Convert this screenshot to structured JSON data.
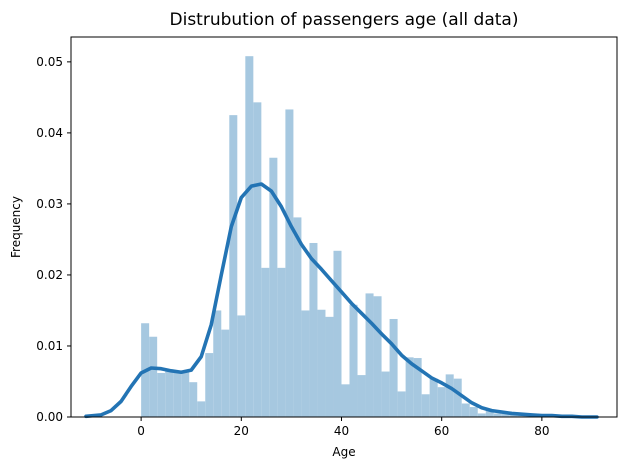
{
  "chart_data": {
    "type": "bar",
    "title": "Distrubution of passengers age (all data)",
    "xlabel": "Age",
    "ylabel": "Frequency",
    "xlim": [
      -14,
      95
    ],
    "ylim": [
      0,
      0.0535
    ],
    "xticks": [
      0,
      20,
      40,
      60,
      80
    ],
    "xtick_labels": [
      "0",
      "20",
      "40",
      "60",
      "80"
    ],
    "yticks": [
      0,
      0.01,
      0.02,
      0.03,
      0.04,
      0.05
    ],
    "ytick_labels": [
      "0.00",
      "0.01",
      "0.02",
      "0.03",
      "0.04",
      "0.05"
    ],
    "grid": false,
    "histogram": {
      "bin_width": 1.6,
      "bin_starts": [
        0,
        1.6,
        3.2,
        4.8,
        6.4,
        8.0,
        9.6,
        11.2,
        12.8,
        14.4,
        16.0,
        17.6,
        19.2,
        20.8,
        22.4,
        24.0,
        25.6,
        27.2,
        28.8,
        30.4,
        32.0,
        33.6,
        35.2,
        36.8,
        38.4,
        40.0,
        41.6,
        43.2,
        44.8,
        46.4,
        48.0,
        49.6,
        51.2,
        52.8,
        54.4,
        56.0,
        57.6,
        59.2,
        60.8,
        62.4,
        64.0,
        65.6,
        67.2,
        68.8,
        70.4,
        72.0,
        73.6,
        75.2,
        76.8,
        78.4
      ],
      "values": [
        0.0132,
        0.0113,
        0.0062,
        0.0066,
        0.0062,
        0.0063,
        0.0049,
        0.0022,
        0.009,
        0.015,
        0.0123,
        0.0425,
        0.0143,
        0.0508,
        0.0443,
        0.021,
        0.0365,
        0.021,
        0.0433,
        0.0281,
        0.015,
        0.0245,
        0.0151,
        0.0141,
        0.0234,
        0.0046,
        0.0158,
        0.0059,
        0.0174,
        0.017,
        0.0064,
        0.0138,
        0.0036,
        0.0084,
        0.0083,
        0.0032,
        0.0054,
        0.0042,
        0.006,
        0.0054,
        0.0019,
        0.0014,
        0.0005,
        0.001,
        0.0005,
        0.0006,
        0.0003,
        0.0003,
        0.0003,
        0.0004
      ],
      "color": "#a6c8e0"
    },
    "series": [
      {
        "type": "kde",
        "x": [
          -11,
          -8,
          -6,
          -4,
          -2,
          0,
          2,
          4,
          6,
          8,
          10,
          12,
          14,
          16,
          18,
          20,
          22,
          24,
          26,
          28,
          30,
          32,
          34,
          36,
          38,
          40,
          42,
          44,
          46,
          48,
          50,
          52,
          54,
          56,
          58,
          60,
          62,
          64,
          66,
          68,
          70,
          72,
          74,
          76,
          78,
          80,
          82,
          84,
          86,
          88,
          91
        ],
        "y": [
          0.0001,
          0.0003,
          0.0009,
          0.0022,
          0.0043,
          0.0062,
          0.0069,
          0.0068,
          0.0065,
          0.0063,
          0.0066,
          0.0085,
          0.013,
          0.02,
          0.0268,
          0.0309,
          0.0325,
          0.0328,
          0.0318,
          0.0296,
          0.0268,
          0.0243,
          0.0223,
          0.0208,
          0.0192,
          0.0176,
          0.016,
          0.0146,
          0.0132,
          0.0117,
          0.0103,
          0.0087,
          0.0075,
          0.0065,
          0.0055,
          0.0048,
          0.004,
          0.003,
          0.002,
          0.0013,
          0.0009,
          0.0007,
          0.0005,
          0.0004,
          0.0003,
          0.0002,
          0.0002,
          0.0001,
          0.0001,
          0.0,
          0.0
        ],
        "color": "#2374b4"
      }
    ]
  }
}
